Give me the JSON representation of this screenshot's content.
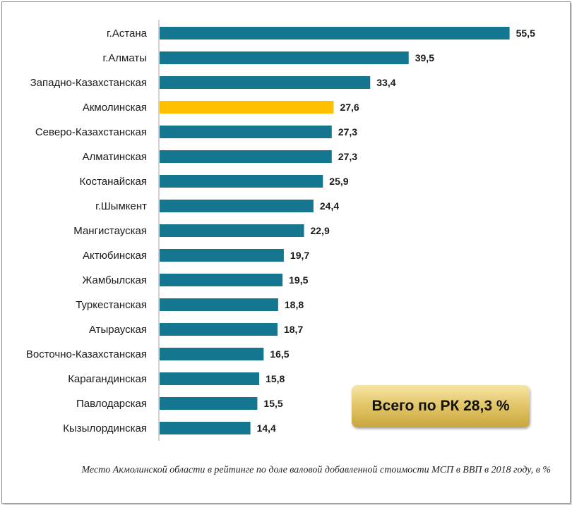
{
  "chart_data": {
    "type": "bar",
    "orientation": "horizontal",
    "categories": [
      "г.Астана",
      "г.Алматы",
      "Западно-Казахстанская",
      "Акмолинская",
      "Северо-Казахстанская",
      "Алматинская",
      "Костанайская",
      "г.Шымкент",
      "Мангистауская",
      "Актюбинская",
      "Жамбылская",
      "Туркестанская",
      "Атырауская",
      "Восточно-Казахстанская",
      "Карагандинская",
      "Павлодарская",
      "Кызылординская"
    ],
    "values": [
      55.5,
      39.5,
      33.4,
      27.6,
      27.3,
      27.3,
      25.9,
      24.4,
      22.9,
      19.7,
      19.5,
      18.8,
      18.7,
      16.5,
      15.8,
      15.5,
      14.4
    ],
    "value_labels": [
      "55,5",
      "39,5",
      "33,4",
      "27,6",
      "27,3",
      "27,3",
      "25,9",
      "24,4",
      "22,9",
      "19,7",
      "19,5",
      "18,8",
      "18,7",
      "16,5",
      "15,8",
      "15,5",
      "14,4"
    ],
    "highlight": "Акмолинская",
    "colors": {
      "bar": "#15768f",
      "highlight": "#ffc000"
    },
    "xlim": [
      0,
      60
    ],
    "grid": false,
    "legend": "none"
  },
  "total_badge": "Всего по РК 28,3 %",
  "caption": "Место Акмолинской области в рейтинге по доле валовой добавленной стоимости МСП в ВВП в 2018 году, в %"
}
